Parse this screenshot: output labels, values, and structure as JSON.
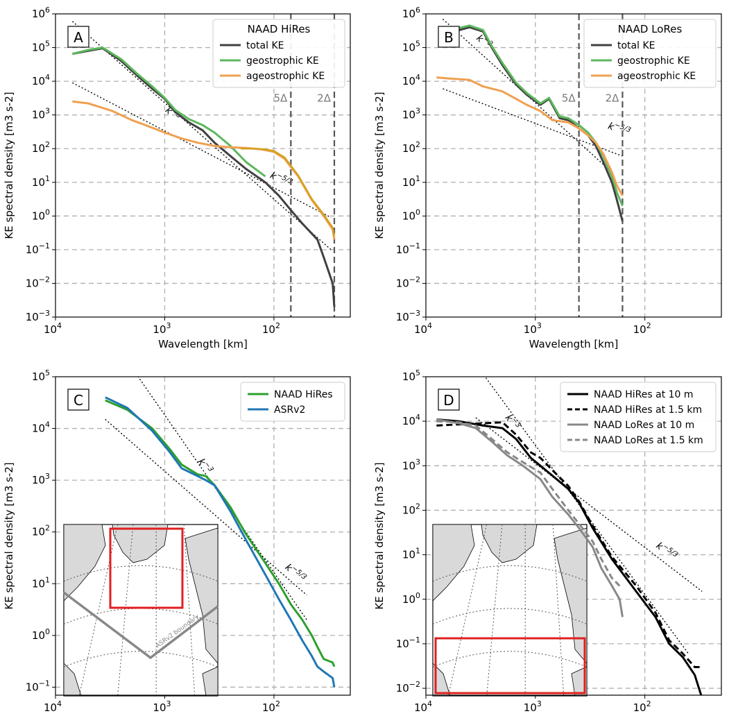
{
  "chart_data": [
    {
      "id": "A",
      "type": "line",
      "scale": {
        "x": "log",
        "y": "log",
        "x_reversed": true
      },
      "xlabel": "Wavelength [km]",
      "ylabel": "KE spectral density [m3 s-2]",
      "xlim": [
        10000,
        20
      ],
      "ylim": [
        0.001,
        1000000
      ],
      "xticks": [
        {
          "v": 10000,
          "label": "10",
          "exp": "4"
        },
        {
          "v": 1000,
          "label": "10",
          "exp": "3"
        },
        {
          "v": 100,
          "label": "10",
          "exp": "2"
        }
      ],
      "yticks": [
        {
          "v": 0.001,
          "label": "10",
          "exp": "−3"
        },
        {
          "v": 0.01,
          "label": "10",
          "exp": "−2"
        },
        {
          "v": 0.1,
          "label": "10",
          "exp": "−1"
        },
        {
          "v": 1,
          "label": "10",
          "exp": "0"
        },
        {
          "v": 10,
          "label": "10",
          "exp": "1"
        },
        {
          "v": 100,
          "label": "10",
          "exp": "2"
        },
        {
          "v": 1000,
          "label": "10",
          "exp": "3"
        },
        {
          "v": 10000,
          "label": "10",
          "exp": "4"
        },
        {
          "v": 100000,
          "label": "10",
          "exp": "5"
        },
        {
          "v": 1000000,
          "label": "10",
          "exp": "6"
        }
      ],
      "grid": true,
      "panel_label": "A",
      "legend": {
        "title": "NAAD HiRes",
        "position": "top-right",
        "entries": [
          "total KE",
          "geostrophic KE",
          "ageostrophic KE"
        ]
      },
      "series": [
        {
          "name": "total KE",
          "color": "#404040",
          "width": 3,
          "x": [
            7000,
            5000,
            3700,
            2500,
            1800,
            1300,
            1000,
            800,
            600,
            450,
            350,
            250,
            180,
            120,
            90,
            70,
            55,
            40,
            35,
            29,
            28
          ],
          "y": [
            65000,
            80000,
            95000,
            40000,
            15000,
            6000,
            3000,
            1200,
            600,
            350,
            150,
            60,
            25,
            10,
            4,
            1.5,
            0.6,
            0.2,
            0.06,
            0.01,
            0.002
          ]
        },
        {
          "name": "geostrophic KE",
          "color": "#5cb85c",
          "width": 3,
          "x": [
            7000,
            5000,
            3700,
            2500,
            1800,
            1300,
            1000,
            800,
            600,
            450,
            350,
            250,
            180,
            120
          ],
          "y": [
            65000,
            85000,
            100000,
            45000,
            17000,
            7000,
            3200,
            1400,
            750,
            500,
            300,
            120,
            40,
            15
          ]
        },
        {
          "name": "ageostrophic KE",
          "color": "#f0a050",
          "width": 3,
          "x": [
            7000,
            5000,
            3000,
            2000,
            1500,
            1000,
            700,
            500,
            350,
            250,
            180,
            130,
            100,
            80,
            60,
            45,
            35,
            29,
            28
          ],
          "y": [
            2500,
            2200,
            1300,
            700,
            500,
            300,
            200,
            150,
            120,
            110,
            105,
            95,
            80,
            50,
            15,
            3,
            1,
            0.4,
            0.2
          ]
        },
        {
          "name": "",
          "color": "#d4a020",
          "width": 2.5,
          "x": [
            200,
            150,
            120,
            100,
            80,
            60,
            45,
            35,
            29,
            28
          ],
          "y": [
            100,
            100,
            95,
            85,
            55,
            16,
            3.2,
            1.1,
            0.45,
            0.25
          ]
        }
      ],
      "reference_lines": [
        {
          "label": "k",
          "label_exp": "−3",
          "x": [
            7000,
            30
          ],
          "y": [
            600000,
            0.1
          ],
          "label_at": [
            1000,
            1300
          ]
        },
        {
          "label": "k",
          "label_exp": "−5/3",
          "x": [
            7000,
            30
          ],
          "y": [
            9000,
            0.9
          ],
          "label_at": [
            110,
            14
          ]
        }
      ],
      "vlines": [
        {
          "x": 70,
          "label": "5Δ"
        },
        {
          "x": 28,
          "label": "2Δ"
        }
      ]
    },
    {
      "id": "B",
      "type": "line",
      "scale": {
        "x": "log",
        "y": "log",
        "x_reversed": true
      },
      "xlabel": "Wavelength [km]",
      "ylabel": "KE spectral density [m3 s-2]",
      "xlim": [
        10000,
        20
      ],
      "ylim": [
        0.001,
        1000000
      ],
      "xticks": [
        {
          "v": 10000,
          "label": "10",
          "exp": "4"
        },
        {
          "v": 1000,
          "label": "10",
          "exp": "3"
        },
        {
          "v": 100,
          "label": "10",
          "exp": "2"
        }
      ],
      "yticks": [
        {
          "v": 0.001,
          "label": "10",
          "exp": "−3"
        },
        {
          "v": 0.01,
          "label": "10",
          "exp": "−2"
        },
        {
          "v": 0.1,
          "label": "10",
          "exp": "−1"
        },
        {
          "v": 1,
          "label": "10",
          "exp": "0"
        },
        {
          "v": 10,
          "label": "10",
          "exp": "1"
        },
        {
          "v": 100,
          "label": "10",
          "exp": "2"
        },
        {
          "v": 1000,
          "label": "10",
          "exp": "3"
        },
        {
          "v": 10000,
          "label": "10",
          "exp": "4"
        },
        {
          "v": 100000,
          "label": "10",
          "exp": "5"
        },
        {
          "v": 1000000,
          "label": "10",
          "exp": "6"
        }
      ],
      "grid": true,
      "panel_label": "B",
      "legend": {
        "title": "NAAD LoRes",
        "position": "top-right",
        "entries": [
          "total KE",
          "geostrophic KE",
          "ageostrophic KE"
        ]
      },
      "series": [
        {
          "name": "total KE",
          "color": "#404040",
          "width": 3,
          "x": [
            5500,
            4000,
            3000,
            2500,
            2000,
            1500,
            1200,
            900,
            750,
            600,
            500,
            400,
            330,
            280,
            240,
            200,
            180,
            160
          ],
          "y": [
            300000,
            400000,
            300000,
            100000,
            30000,
            8000,
            4000,
            2000,
            3000,
            800,
            700,
            400,
            250,
            120,
            40,
            10,
            3,
            0.7
          ]
        },
        {
          "name": "geostrophic KE",
          "color": "#5cb85c",
          "width": 3,
          "x": [
            5500,
            4000,
            3000,
            2500,
            2000,
            1500,
            1200,
            900,
            750,
            600,
            500,
            400,
            330,
            280,
            240,
            200,
            180,
            160
          ],
          "y": [
            350000,
            450000,
            330000,
            110000,
            35000,
            9000,
            4500,
            2200,
            3200,
            900,
            800,
            500,
            300,
            150,
            60,
            15,
            5,
            2
          ]
        },
        {
          "name": "ageostrophic KE",
          "color": "#f0a050",
          "width": 3,
          "x": [
            8000,
            6000,
            4000,
            3000,
            2000,
            1500,
            1200,
            900,
            700,
            500,
            400,
            330,
            280,
            240,
            200,
            180,
            160
          ],
          "y": [
            13000,
            12000,
            11000,
            7000,
            5000,
            3000,
            2000,
            1300,
            700,
            600,
            400,
            250,
            150,
            70,
            20,
            8,
            4
          ]
        }
      ],
      "reference_lines": [
        {
          "label": "k",
          "label_exp": "−3",
          "x": [
            7000,
            200
          ],
          "y": [
            700000,
            20
          ],
          "label_at": [
            3500,
            180000
          ]
        },
        {
          "label": "k",
          "label_exp": "−5/3",
          "x": [
            7000,
            160
          ],
          "y": [
            6000,
            60
          ],
          "label_at": [
            220,
            400
          ]
        }
      ],
      "vlines": [
        {
          "x": 400,
          "label": "5Δ"
        },
        {
          "x": 160,
          "label": "2Δ"
        }
      ]
    },
    {
      "id": "C",
      "type": "line",
      "scale": {
        "x": "log",
        "y": "log",
        "x_reversed": true
      },
      "xlabel": "Wavelength [km]",
      "ylabel": "KE spectral density [m3 s-2]",
      "xlim": [
        10000,
        20
      ],
      "ylim": [
        0.07,
        100000
      ],
      "xticks": [
        {
          "v": 10000,
          "label": "10",
          "exp": "4"
        },
        {
          "v": 1000,
          "label": "10",
          "exp": "3"
        },
        {
          "v": 100,
          "label": "10",
          "exp": "2"
        }
      ],
      "yticks": [
        {
          "v": 0.1,
          "label": "10",
          "exp": "−1"
        },
        {
          "v": 1,
          "label": "10",
          "exp": "0"
        },
        {
          "v": 10,
          "label": "10",
          "exp": "1"
        },
        {
          "v": 100,
          "label": "10",
          "exp": "2"
        },
        {
          "v": 1000,
          "label": "10",
          "exp": "3"
        },
        {
          "v": 10000,
          "label": "10",
          "exp": "4"
        },
        {
          "v": 100000,
          "label": "10",
          "exp": "5"
        }
      ],
      "grid": true,
      "panel_label": "C",
      "legend": {
        "title": "",
        "position": "top-right",
        "entries": [
          "NAAD HiRes",
          "ASRv2"
        ]
      },
      "series": [
        {
          "name": "NAAD HiRes",
          "color": "#2ca02c",
          "width": 3,
          "x": [
            3500,
            2200,
            1300,
            900,
            700,
            500,
            420,
            350,
            250,
            180,
            120,
            90,
            70,
            55,
            45,
            40,
            35,
            29,
            28
          ],
          "y": [
            35000,
            23000,
            10000,
            4000,
            2000,
            1300,
            1200,
            800,
            300,
            90,
            25,
            10,
            4,
            2,
            1,
            0.6,
            0.35,
            0.3,
            0.25
          ]
        },
        {
          "name": "ASRv2",
          "color": "#1f77b4",
          "width": 3,
          "x": [
            3500,
            2200,
            1300,
            900,
            700,
            500,
            420,
            350,
            250,
            180,
            120,
            90,
            70,
            55,
            45,
            40,
            35,
            29,
            28
          ],
          "y": [
            40000,
            25000,
            9000,
            3500,
            1700,
            1200,
            1000,
            800,
            250,
            70,
            15,
            5,
            2,
            0.8,
            0.4,
            0.25,
            0.2,
            0.15,
            0.1
          ]
        }
      ],
      "reference_lines": [
        {
          "label": "k",
          "label_exp": "−3",
          "x": [
            2000,
            50
          ],
          "y": [
            150000,
            2
          ],
          "label_at": [
            500,
            2300
          ]
        },
        {
          "label": "k",
          "label_exp": "−5/3",
          "x": [
            3500,
            50
          ],
          "y": [
            15000,
            6
          ],
          "label_at": [
            80,
            20
          ]
        }
      ],
      "inset": {
        "boundary_label": "ASRv2 boundary"
      }
    },
    {
      "id": "D",
      "type": "line",
      "scale": {
        "x": "log",
        "y": "log",
        "x_reversed": true
      },
      "xlabel": "Wavelength [km]",
      "ylabel": "KE spectral density [m3 s-2]",
      "xlim": [
        10000,
        20
      ],
      "ylim": [
        0.007,
        100000
      ],
      "xticks": [
        {
          "v": 10000,
          "label": "10",
          "exp": "4"
        },
        {
          "v": 1000,
          "label": "10",
          "exp": "3"
        },
        {
          "v": 100,
          "label": "10",
          "exp": "2"
        }
      ],
      "yticks": [
        {
          "v": 0.01,
          "label": "10",
          "exp": "−2"
        },
        {
          "v": 0.1,
          "label": "10",
          "exp": "−1"
        },
        {
          "v": 1,
          "label": "10",
          "exp": "0"
        },
        {
          "v": 10,
          "label": "10",
          "exp": "1"
        },
        {
          "v": 100,
          "label": "10",
          "exp": "2"
        },
        {
          "v": 1000,
          "label": "10",
          "exp": "3"
        },
        {
          "v": 10000,
          "label": "10",
          "exp": "4"
        },
        {
          "v": 100000,
          "label": "10",
          "exp": "5"
        }
      ],
      "grid": true,
      "panel_label": "D",
      "legend": {
        "title": "",
        "position": "top-right",
        "entries": [
          "NAAD HiRes at 10 m",
          "NAAD HiRes at 1.5 km",
          "NAAD LoRes at 10 m",
          "NAAD LoRes at 1.5 km"
        ]
      },
      "series": [
        {
          "name": "NAAD HiRes at 10 m",
          "color": "#000000",
          "dash": "",
          "width": 3,
          "x": [
            8000,
            5000,
            3000,
            2000,
            1500,
            1100,
            900,
            700,
            500,
            400,
            300,
            200,
            120,
            80,
            60,
            45,
            35,
            30
          ],
          "y": [
            11000,
            10000,
            8000,
            7000,
            4000,
            1500,
            1000,
            600,
            300,
            150,
            40,
            8,
            1.5,
            0.4,
            0.1,
            0.05,
            0.02,
            0.006
          ]
        },
        {
          "name": "NAAD HiRes at 1.5 km",
          "color": "#000000",
          "dash": "9,5",
          "width": 3,
          "x": [
            8000,
            5000,
            3000,
            2000,
            1500,
            1100,
            900,
            700,
            500,
            400,
            300,
            200,
            120,
            80,
            60,
            45,
            35,
            30
          ],
          "y": [
            8000,
            8500,
            9000,
            9500,
            5000,
            2000,
            1500,
            800,
            350,
            160,
            45,
            9,
            2,
            0.5,
            0.12,
            0.06,
            0.03,
            0.03
          ]
        },
        {
          "name": "NAAD LoRes at 10 m",
          "color": "#888888",
          "dash": "",
          "width": 3,
          "x": [
            8000,
            5000,
            3500,
            2500,
            1800,
            1300,
            900,
            700,
            500,
            400,
            300,
            250,
            200,
            170,
            160
          ],
          "y": [
            11000,
            9000,
            7000,
            3500,
            1700,
            1000,
            500,
            200,
            80,
            40,
            15,
            5,
            2,
            1,
            0.4
          ]
        },
        {
          "name": "NAAD LoRes at 1.5 km",
          "color": "#888888",
          "dash": "9,5",
          "width": 3,
          "x": [
            8000,
            5000,
            3500,
            2500,
            1800,
            1300,
            900,
            700,
            500,
            400,
            300,
            250,
            200,
            170
          ],
          "y": [
            10000,
            9500,
            8000,
            4000,
            2000,
            1200,
            700,
            300,
            100,
            50,
            20,
            8,
            3,
            2
          ]
        }
      ],
      "reference_lines": [
        {
          "label": "k",
          "label_exp": "−3",
          "x": [
            4000,
            40
          ],
          "y": [
            300000,
            0.06
          ],
          "label_at": [
            1900,
            12000
          ]
        },
        {
          "label": "k",
          "label_exp": "−5/3",
          "x": [
            3500,
            30
          ],
          "y": [
            12000,
            1.5
          ],
          "label_at": [
            80,
            15
          ]
        }
      ]
    }
  ]
}
